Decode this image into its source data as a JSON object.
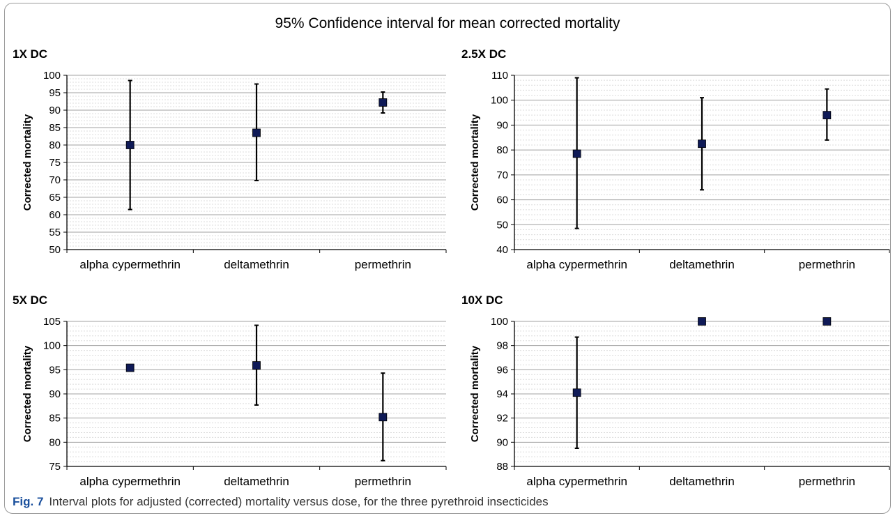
{
  "figure": {
    "title": "95% Confidence interval for mean corrected mortality",
    "caption_label": "Fig. 7",
    "caption_text": "Interval plots for adjusted (corrected) mortality versus dose, for the three pyrethroid insecticides"
  },
  "chart_data": [
    {
      "type": "interval",
      "title": "1X DC",
      "ylabel": "Corrected mortality",
      "categories": [
        "alpha cypermethrin",
        "deltamethrin",
        "permethrin"
      ],
      "ylim": [
        50,
        100
      ],
      "ytick_step": 5,
      "grid": true,
      "mean": [
        80,
        83.5,
        92.2
      ],
      "lower": [
        61.5,
        69.8,
        89.2
      ],
      "upper": [
        98.5,
        97.5,
        95.2
      ]
    },
    {
      "type": "interval",
      "title": "2.5X DC",
      "ylabel": "Corrected mortality",
      "categories": [
        "alpha cypermethrin",
        "deltamethrin",
        "permethrin"
      ],
      "ylim": [
        40,
        110
      ],
      "ytick_step": 10,
      "grid": true,
      "mean": [
        78.5,
        82.5,
        94
      ],
      "lower": [
        48.5,
        64,
        84
      ],
      "upper": [
        109,
        101,
        104.5
      ]
    },
    {
      "type": "interval",
      "title": "5X DC",
      "ylabel": "Corrected mortality",
      "categories": [
        "alpha cypermethrin",
        "deltamethrin",
        "permethrin"
      ],
      "ylim": [
        75,
        105
      ],
      "ytick_step": 5,
      "grid": true,
      "mean": [
        95.4,
        95.9,
        85.2
      ],
      "lower": [
        null,
        87.7,
        76.2
      ],
      "upper": [
        null,
        104.2,
        94.3
      ]
    },
    {
      "type": "interval",
      "title": "10X DC",
      "ylabel": "Corrected mortality",
      "categories": [
        "alpha cypermethrin",
        "deltamethrin",
        "permethrin"
      ],
      "ylim": [
        88,
        100
      ],
      "ytick_step": 2,
      "grid": true,
      "mean": [
        94.1,
        100,
        100
      ],
      "lower": [
        89.5,
        null,
        null
      ],
      "upper": [
        98.7,
        null,
        null
      ]
    }
  ]
}
